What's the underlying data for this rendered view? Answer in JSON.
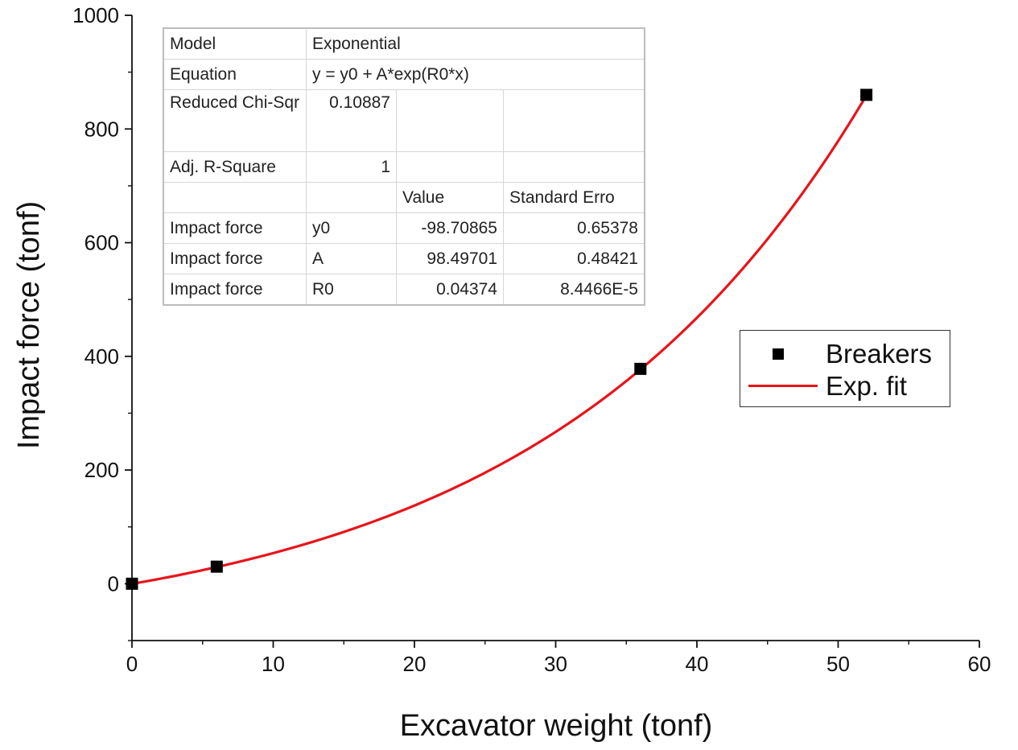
{
  "chart_data": {
    "type": "scatter",
    "xlabel": "Excavator weight (tonf)",
    "ylabel": "Impact force (tonf)",
    "xlim": [
      0,
      60
    ],
    "ylim": [
      -100,
      1000
    ],
    "x_ticks": [
      0,
      10,
      20,
      30,
      40,
      50,
      60
    ],
    "y_ticks": [
      0,
      200,
      400,
      600,
      800,
      1000
    ],
    "series": [
      {
        "name": "Breakers",
        "kind": "scatter",
        "marker": "square",
        "color": "#000000",
        "points": [
          {
            "x": 0,
            "y": 0
          },
          {
            "x": 6,
            "y": 30
          },
          {
            "x": 36,
            "y": 378
          },
          {
            "x": 52,
            "y": 860
          }
        ]
      },
      {
        "name": "Exp. fit",
        "kind": "line",
        "color": "#e8141a",
        "model": "exponential",
        "params": {
          "y0": -98.70865,
          "A": 98.49701,
          "R0": 0.04374
        },
        "x_range": [
          0,
          52
        ]
      }
    ],
    "legend": {
      "position": "right-middle",
      "entries": [
        "Breakers",
        "Exp. fit"
      ]
    }
  },
  "fit_table": {
    "model_label": "Model",
    "model_value": "Exponential",
    "equation_label": "Equation",
    "equation_value": "y = y0 + A*exp(R0*x)",
    "chi_label": "Reduced Chi-Sqr",
    "chi_value": "0.10887",
    "r2_label": "Adj. R-Square",
    "r2_value": "1",
    "value_header": "Value",
    "stderr_header": "Standard Erro",
    "rows": [
      {
        "name": "Impact force",
        "param": "y0",
        "value": "-98.70865",
        "stderr": "0.65378"
      },
      {
        "name": "Impact force",
        "param": "A",
        "value": "98.49701",
        "stderr": "0.48421"
      },
      {
        "name": "Impact force",
        "param": "R0",
        "value": "0.04374",
        "stderr": "8.4466E-5"
      }
    ]
  }
}
